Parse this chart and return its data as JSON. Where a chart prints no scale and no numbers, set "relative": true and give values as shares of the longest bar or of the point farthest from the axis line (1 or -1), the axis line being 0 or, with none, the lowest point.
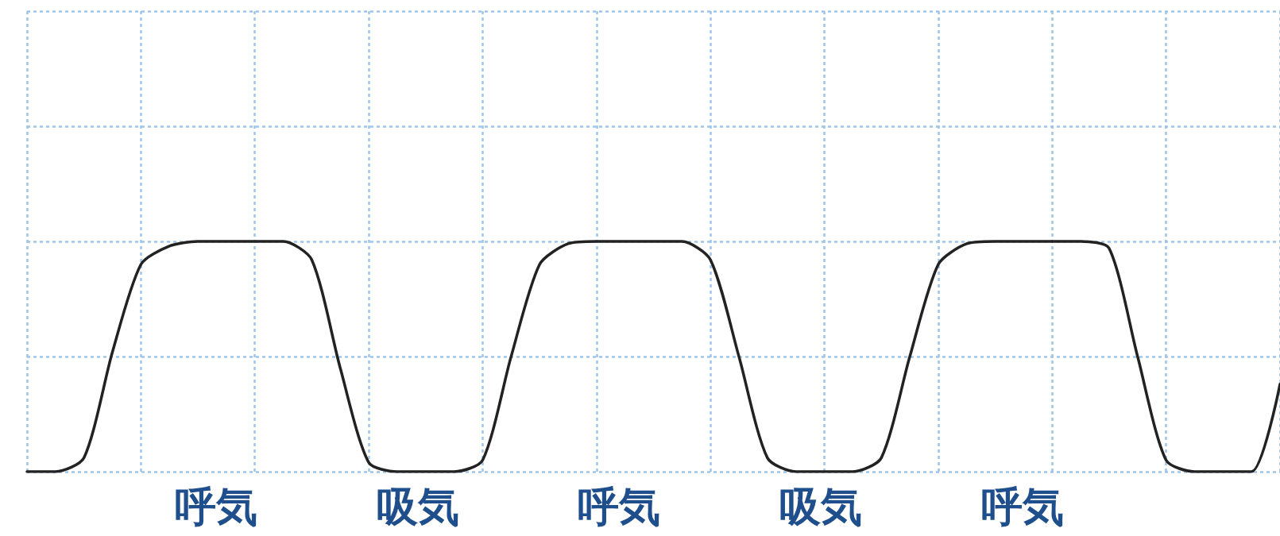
{
  "chart_data": {
    "type": "line",
    "relative": true,
    "grid": true,
    "marker": "none",
    "line_style": "solid",
    "categories": [
      null,
      null,
      null,
      null,
      null,
      null,
      null,
      null,
      null,
      null,
      null,
      null,
      null,
      null,
      null,
      null,
      null,
      null,
      null,
      null,
      null,
      null,
      null,
      null,
      null,
      null,
      null,
      null,
      null,
      null,
      null,
      null,
      null,
      null,
      null,
      null,
      null,
      null,
      null,
      null,
      null,
      null,
      null,
      null,
      null
    ],
    "series": [
      {
        "color": "#222222",
        "values": [
          0,
          0,
          0.06,
          0.52,
          0.9,
          0.98,
          1,
          1,
          1,
          1,
          0.92,
          0.45,
          0.04,
          0,
          0,
          0,
          0.05,
          0.5,
          0.9,
          0.99,
          1,
          1,
          1,
          1,
          0.92,
          0.5,
          0.06,
          0,
          0,
          0,
          0.06,
          0.5,
          0.9,
          0.99,
          1,
          1,
          1,
          1,
          0.97,
          0.5,
          0.05,
          0,
          0,
          0,
          0.38
        ]
      }
    ],
    "annotations": [
      "呼気",
      "吸気",
      "呼気",
      "吸気",
      "呼気"
    ]
  }
}
